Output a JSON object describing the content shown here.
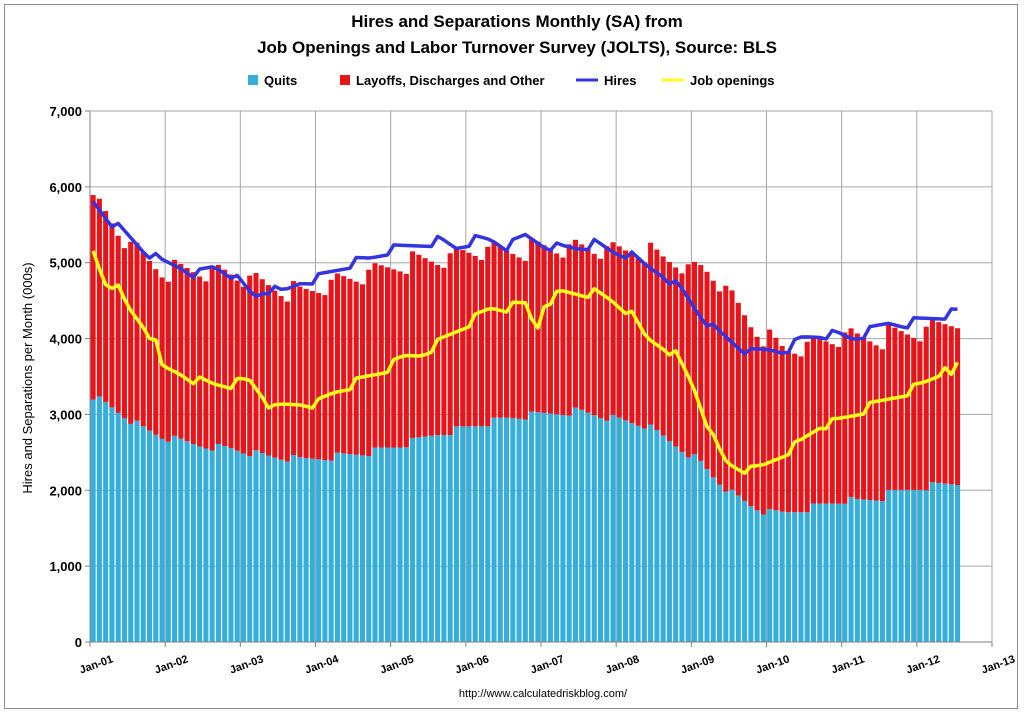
{
  "chart_data": {
    "type": "bar",
    "title": "Hires and Separations Monthly (SA) from",
    "subtitle": "Job Openings and Labor Turnover Survey (JOLTS), Source: BLS",
    "ylabel": "Hires and Separations per Month (000s)",
    "xlabel": "",
    "source_note": "http://www.calculatedriskblog.com/",
    "ylim": [
      0,
      7000
    ],
    "y_ticks": [
      "0",
      "1,000",
      "2,000",
      "3,000",
      "4,000",
      "5,000",
      "6,000",
      "7,000"
    ],
    "x_ticks": [
      "Jan-01",
      "Jan-02",
      "Jan-03",
      "Jan-04",
      "Jan-05",
      "Jan-06",
      "Jan-07",
      "Jan-08",
      "Jan-09",
      "Jan-10",
      "Jan-11",
      "Jan-12",
      "Jan-13"
    ],
    "x_range": [
      "2001-01",
      "2013-01"
    ],
    "stacked": true,
    "grid": true,
    "legend_position": "top",
    "colors": {
      "quits": "#35aedc",
      "layoffs": "#e8141a",
      "hires": "#3333e0",
      "openings": "#ffff1a",
      "plot_bg": "#ffffff",
      "grid": "#a6a6a6"
    },
    "anchors": {
      "quits": [
        [
          0,
          3250
        ],
        [
          3,
          3100
        ],
        [
          6,
          2950
        ],
        [
          9,
          2800
        ],
        [
          12,
          2700
        ],
        [
          18,
          2600
        ],
        [
          24,
          2550
        ],
        [
          30,
          2450
        ],
        [
          36,
          2400
        ],
        [
          42,
          2450
        ],
        [
          48,
          2500
        ],
        [
          54,
          2600
        ],
        [
          60,
          2750
        ],
        [
          66,
          2850
        ],
        [
          72,
          2950
        ],
        [
          78,
          3000
        ],
        [
          84,
          3050
        ],
        [
          90,
          2950
        ],
        [
          96,
          2850
        ],
        [
          99,
          2700
        ],
        [
          102,
          2550
        ],
        [
          105,
          2400
        ],
        [
          108,
          2150
        ],
        [
          111,
          1950
        ],
        [
          114,
          1800
        ],
        [
          117,
          1700
        ],
        [
          120,
          1700
        ],
        [
          126,
          1800
        ],
        [
          132,
          1850
        ],
        [
          138,
          1950
        ],
        [
          144,
          2050
        ],
        [
          150,
          2100
        ],
        [
          137,
          1900
        ],
        [
          131,
          1880
        ]
      ],
      "layoffs": [
        [
          0,
          2600
        ],
        [
          6,
          2300
        ],
        [
          12,
          2200
        ],
        [
          18,
          2300
        ],
        [
          24,
          2300
        ],
        [
          30,
          2250
        ],
        [
          36,
          2200
        ],
        [
          42,
          2300
        ],
        [
          48,
          2350
        ],
        [
          54,
          2400
        ],
        [
          60,
          2300
        ],
        [
          66,
          2300
        ],
        [
          72,
          2200
        ],
        [
          78,
          2200
        ],
        [
          84,
          2150
        ],
        [
          90,
          2200
        ],
        [
          96,
          2300
        ],
        [
          99,
          2350
        ],
        [
          102,
          2450
        ],
        [
          104,
          2450
        ],
        [
          106,
          2600
        ],
        [
          108,
          2650
        ],
        [
          110,
          2600
        ],
        [
          112,
          2500
        ],
        [
          114,
          2400
        ],
        [
          117,
          2300
        ],
        [
          120,
          2150
        ],
        [
          126,
          2150
        ],
        [
          132,
          2150
        ],
        [
          138,
          2100
        ],
        [
          144,
          2050
        ],
        [
          150,
          2150
        ]
      ],
      "hires": [
        [
          0,
          5800
        ],
        [
          3,
          5550
        ],
        [
          6,
          5350
        ],
        [
          9,
          5150
        ],
        [
          12,
          5000
        ],
        [
          15,
          4950
        ],
        [
          18,
          4850
        ],
        [
          21,
          4950
        ],
        [
          24,
          4850
        ],
        [
          26,
          4700
        ],
        [
          28,
          4550
        ],
        [
          30,
          4650
        ],
        [
          33,
          4600
        ],
        [
          36,
          4750
        ],
        [
          39,
          4800
        ],
        [
          42,
          4900
        ],
        [
          45,
          5000
        ],
        [
          48,
          5050
        ],
        [
          51,
          5150
        ],
        [
          54,
          5200
        ],
        [
          57,
          5250
        ],
        [
          60,
          5300
        ],
        [
          63,
          5200
        ],
        [
          66,
          5300
        ],
        [
          69,
          5300
        ],
        [
          72,
          5200
        ],
        [
          75,
          5350
        ],
        [
          78,
          5250
        ],
        [
          81,
          5200
        ],
        [
          84,
          5200
        ],
        [
          87,
          5250
        ],
        [
          90,
          5150
        ],
        [
          93,
          5100
        ],
        [
          96,
          4950
        ],
        [
          99,
          4850
        ],
        [
          102,
          4650
        ],
        [
          105,
          4350
        ],
        [
          108,
          4100
        ],
        [
          111,
          3950
        ],
        [
          114,
          3800
        ],
        [
          117,
          3850
        ],
        [
          120,
          3850
        ],
        [
          123,
          4000
        ],
        [
          126,
          4050
        ],
        [
          129,
          4050
        ],
        [
          132,
          4000
        ],
        [
          135,
          4100
        ],
        [
          138,
          4200
        ],
        [
          141,
          4200
        ],
        [
          144,
          4250
        ],
        [
          147,
          4300
        ],
        [
          150,
          4350
        ]
      ],
      "openings": [
        [
          0,
          5150
        ],
        [
          2,
          4750
        ],
        [
          4,
          4700
        ],
        [
          6,
          4400
        ],
        [
          9,
          4150
        ],
        [
          11,
          3900
        ],
        [
          12,
          3600
        ],
        [
          15,
          3550
        ],
        [
          18,
          3450
        ],
        [
          21,
          3400
        ],
        [
          24,
          3400
        ],
        [
          27,
          3450
        ],
        [
          30,
          3200
        ],
        [
          31,
          3050
        ],
        [
          33,
          3100
        ],
        [
          36,
          3150
        ],
        [
          39,
          3150
        ],
        [
          42,
          3300
        ],
        [
          45,
          3400
        ],
        [
          48,
          3500
        ],
        [
          51,
          3600
        ],
        [
          54,
          3750
        ],
        [
          57,
          3800
        ],
        [
          60,
          3950
        ],
        [
          63,
          4100
        ],
        [
          66,
          4250
        ],
        [
          69,
          4400
        ],
        [
          72,
          4400
        ],
        [
          75,
          4450
        ],
        [
          77,
          4100
        ],
        [
          78,
          4450
        ],
        [
          81,
          4600
        ],
        [
          84,
          4600
        ],
        [
          87,
          4600
        ],
        [
          90,
          4500
        ],
        [
          93,
          4350
        ],
        [
          96,
          4000
        ],
        [
          99,
          3900
        ],
        [
          101,
          3800
        ],
        [
          104,
          3400
        ],
        [
          106,
          3000
        ],
        [
          108,
          2600
        ],
        [
          110,
          2350
        ],
        [
          112,
          2300
        ],
        [
          114,
          2250
        ],
        [
          116,
          2300
        ],
        [
          118,
          2400
        ],
        [
          120,
          2500
        ],
        [
          123,
          2650
        ],
        [
          126,
          2850
        ],
        [
          129,
          2900
        ],
        [
          132,
          3000
        ],
        [
          135,
          3100
        ],
        [
          138,
          3200
        ],
        [
          141,
          3300
        ],
        [
          144,
          3400
        ],
        [
          147,
          3550
        ],
        [
          148,
          3700
        ],
        [
          149,
          3450
        ],
        [
          150,
          3650
        ]
      ]
    }
  }
}
